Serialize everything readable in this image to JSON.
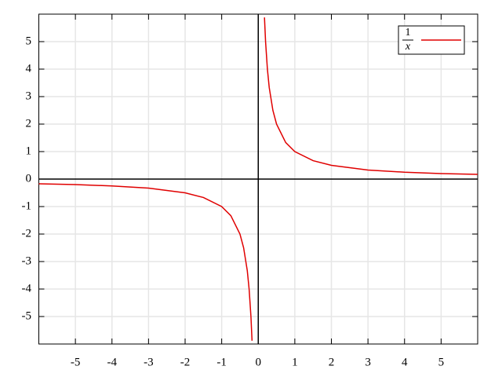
{
  "chart_data": {
    "type": "line",
    "series": [
      {
        "name": {
          "numerator": "1",
          "denominator": "x"
        },
        "color": "#e00000",
        "x": [
          -6,
          -5,
          -4,
          -3,
          -2,
          -1.5,
          -1,
          -0.75,
          -0.5,
          -0.4,
          -0.3,
          -0.25,
          -0.2,
          -0.17,
          0,
          0.17,
          0.2,
          0.25,
          0.3,
          0.4,
          0.5,
          0.75,
          1,
          1.5,
          2,
          3,
          4,
          5,
          6
        ],
        "values": [
          -0.17,
          -0.2,
          -0.25,
          -0.33,
          -0.5,
          -0.67,
          -1,
          -1.33,
          -2,
          -2.5,
          -3.33,
          -4,
          -5,
          -5.88,
          null,
          5.88,
          5,
          4,
          3.33,
          2.5,
          2,
          1.33,
          1,
          0.67,
          0.5,
          0.33,
          0.25,
          0.2,
          0.17
        ]
      }
    ],
    "xlim": [
      -6,
      6
    ],
    "ylim": [
      -6,
      6
    ],
    "xticks": [
      -5,
      -4,
      -3,
      -2,
      -1,
      0,
      1,
      2,
      3,
      4,
      5
    ],
    "yticks": [
      -5,
      -4,
      -3,
      -2,
      -1,
      0,
      1,
      2,
      3,
      4,
      5
    ],
    "grid": true,
    "legend": "upper right"
  }
}
